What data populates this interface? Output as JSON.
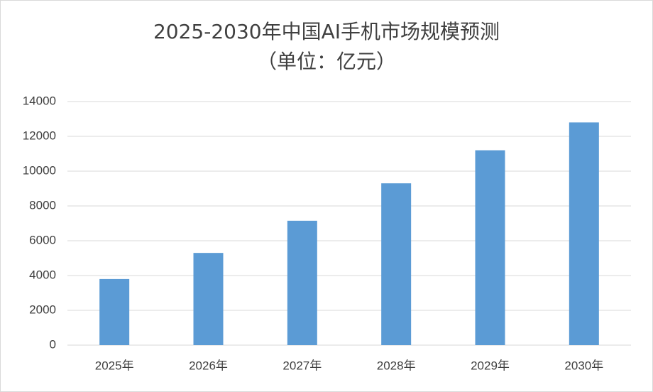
{
  "chart_data": {
    "type": "bar",
    "title": "2025-2030年中国AI手机市场规模预测",
    "subtitle": "（单位：亿元）",
    "categories": [
      "2025年",
      "2026年",
      "2027年",
      "2028年",
      "2029年",
      "2030年"
    ],
    "values": [
      3800,
      5300,
      7150,
      9300,
      11200,
      12800
    ],
    "color": "#5b9bd5",
    "ylim": [
      0,
      14000
    ],
    "yticks": [
      0,
      2000,
      4000,
      6000,
      8000,
      10000,
      12000,
      14000
    ],
    "grid": true
  }
}
